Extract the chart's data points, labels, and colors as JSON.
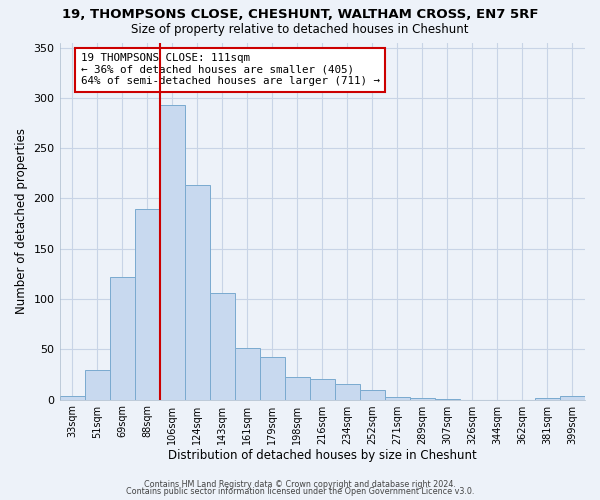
{
  "title": "19, THOMPSONS CLOSE, CHESHUNT, WALTHAM CROSS, EN7 5RF",
  "subtitle": "Size of property relative to detached houses in Cheshunt",
  "xlabel": "Distribution of detached houses by size in Cheshunt",
  "ylabel": "Number of detached properties",
  "bar_labels": [
    "33sqm",
    "51sqm",
    "69sqm",
    "88sqm",
    "106sqm",
    "124sqm",
    "143sqm",
    "161sqm",
    "179sqm",
    "198sqm",
    "216sqm",
    "234sqm",
    "252sqm",
    "271sqm",
    "289sqm",
    "307sqm",
    "326sqm",
    "344sqm",
    "362sqm",
    "381sqm",
    "399sqm"
  ],
  "bar_values": [
    4,
    29,
    122,
    189,
    293,
    213,
    106,
    51,
    42,
    22,
    20,
    15,
    10,
    3,
    2,
    1,
    0,
    0,
    0,
    2,
    4
  ],
  "bar_color": "#c8d9ef",
  "bar_edge_color": "#7aaacf",
  "grid_color": "#c8d4e6",
  "bg_color": "#edf2f9",
  "vline_x_idx": 4,
  "vline_color": "#cc0000",
  "annotation_text": "19 THOMPSONS CLOSE: 111sqm\n← 36% of detached houses are smaller (405)\n64% of semi-detached houses are larger (711) →",
  "annotation_box_color": "#ffffff",
  "annotation_box_edge": "#cc0000",
  "ylim": [
    0,
    355
  ],
  "yticks": [
    0,
    50,
    100,
    150,
    200,
    250,
    300,
    350
  ],
  "footer1": "Contains HM Land Registry data © Crown copyright and database right 2024.",
  "footer2": "Contains public sector information licensed under the Open Government Licence v3.0."
}
